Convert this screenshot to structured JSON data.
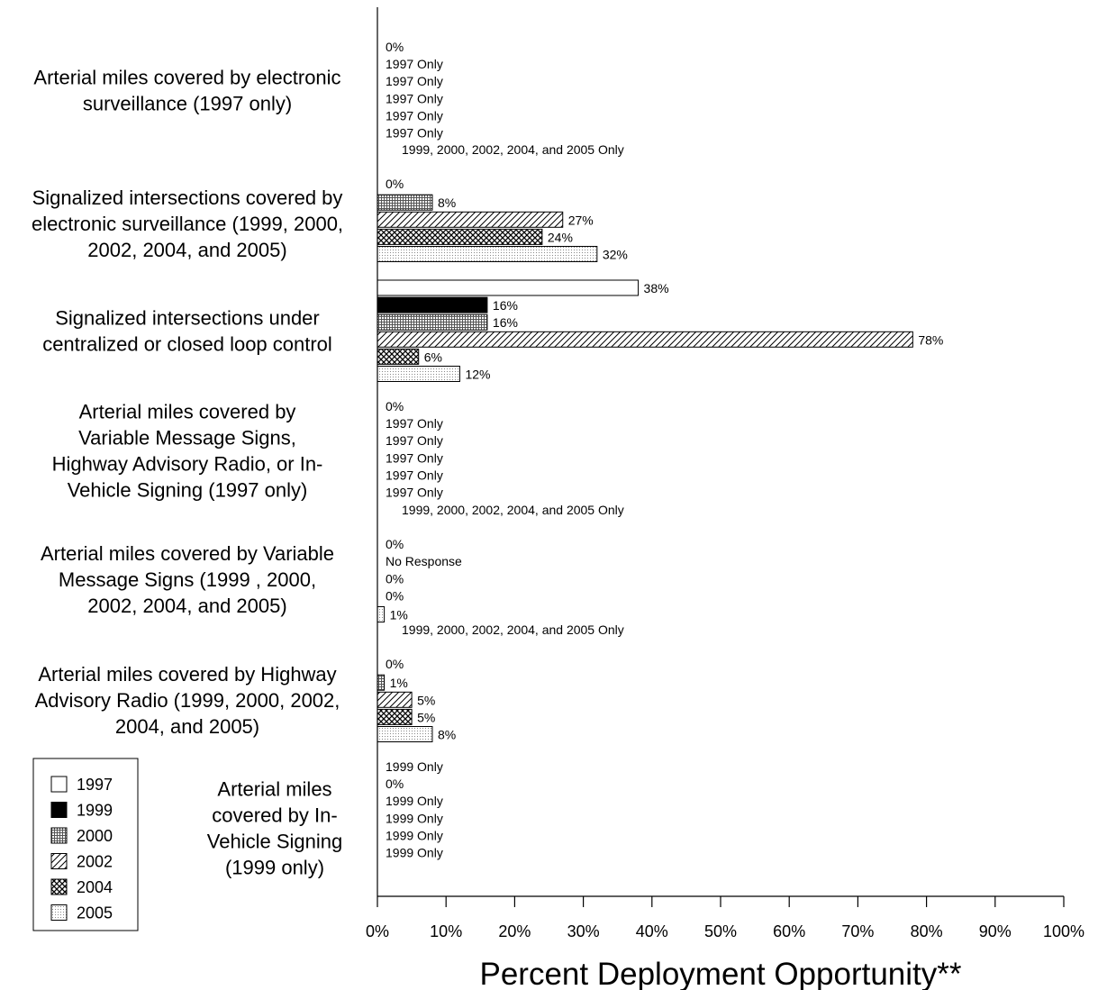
{
  "chart_data": {
    "type": "bar",
    "orientation": "horizontal",
    "xlabel": "Percent Deployment Opportunity**",
    "xlim": [
      0,
      100
    ],
    "xticks": [
      "0%",
      "10%",
      "20%",
      "30%",
      "40%",
      "50%",
      "60%",
      "70%",
      "80%",
      "90%",
      "100%"
    ],
    "grid": false,
    "legend_position": "bottom-left",
    "series": [
      {
        "name": "1997",
        "pattern": "white"
      },
      {
        "name": "1999",
        "pattern": "black"
      },
      {
        "name": "2000",
        "pattern": "grid"
      },
      {
        "name": "2002",
        "pattern": "diagonal"
      },
      {
        "name": "2004",
        "pattern": "crosshatch"
      },
      {
        "name": "2005",
        "pattern": "dotted"
      }
    ],
    "groups": [
      {
        "label_lines": [
          "Arterial miles covered by electronic",
          "surveillance (1997 only)"
        ],
        "note": "",
        "values": [
          0,
          null,
          null,
          null,
          null,
          null
        ],
        "labels": [
          "0%",
          "1997 Only",
          "1997 Only",
          "1997 Only",
          "1997 Only",
          "1997 Only"
        ]
      },
      {
        "label_lines": [
          "Signalized intersections covered by",
          "electronic surveillance (1999, 2000,",
          "2002, 2004, and 2005)"
        ],
        "note": "1999, 2000, 2002, 2004, and 2005 Only",
        "values": [
          null,
          0,
          8,
          27,
          24,
          32
        ],
        "labels": [
          "",
          "0%",
          "8%",
          "27%",
          "24%",
          "32%"
        ]
      },
      {
        "label_lines": [
          "Signalized intersections under",
          "centralized or closed loop control"
        ],
        "note": "",
        "values": [
          38,
          16,
          16,
          78,
          6,
          12
        ],
        "labels": [
          "38%",
          "16%",
          "16%",
          "78%",
          "6%",
          "12%"
        ]
      },
      {
        "label_lines": [
          "Arterial miles covered by",
          "Variable Message Signs,",
          "Highway Advisory Radio, or In-",
          "Vehicle Signing (1997 only)"
        ],
        "note": "",
        "values": [
          0,
          null,
          null,
          null,
          null,
          null
        ],
        "labels": [
          "0%",
          "1997 Only",
          "1997 Only",
          "1997 Only",
          "1997 Only",
          "1997 Only"
        ]
      },
      {
        "label_lines": [
          "Arterial miles covered by Variable",
          "Message Signs (1999 , 2000,",
          "2002, 2004, and 2005)"
        ],
        "note": "1999, 2000, 2002, 2004, and 2005 Only",
        "values": [
          null,
          0,
          null,
          0,
          0,
          1
        ],
        "labels": [
          "",
          "0%",
          "No Response",
          "0%",
          "0%",
          "1%"
        ]
      },
      {
        "label_lines": [
          "Arterial miles covered by Highway",
          "Advisory Radio (1999, 2000, 2002,",
          "2004, and 2005)"
        ],
        "note": "1999, 2000, 2002, 2004, and 2005 Only",
        "values": [
          null,
          0,
          1,
          5,
          5,
          8
        ],
        "labels": [
          "",
          "0%",
          "1%",
          "5%",
          "5%",
          "8%"
        ]
      },
      {
        "label_lines": [
          "Arterial miles",
          "covered by In-",
          "Vehicle Signing",
          "(1999 only)"
        ],
        "note": "",
        "values": [
          null,
          0,
          null,
          null,
          null,
          null
        ],
        "labels": [
          "1999 Only",
          "0%",
          "1999 Only",
          "1999 Only",
          "1999 Only",
          "1999 Only"
        ]
      }
    ]
  }
}
